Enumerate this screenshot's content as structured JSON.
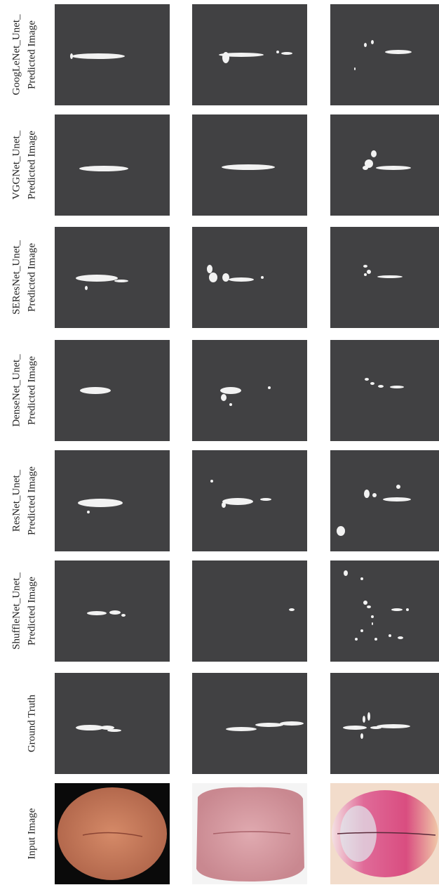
{
  "rows": [
    {
      "label": [
        "GoogLeNet_Unet_",
        "Predicted Image"
      ]
    },
    {
      "label": [
        "VGGNet_Unet_",
        "Predicted Image"
      ]
    },
    {
      "label": [
        "SEResNet_Unet_",
        "Predicted Image"
      ]
    },
    {
      "label": [
        "DenseNet_Unet_",
        "Predicted Image"
      ]
    },
    {
      "label": [
        "ResNet_Unet_",
        "Predicted Image"
      ]
    },
    {
      "label": [
        "ShuffleNet_Unet_",
        "Predicted Image"
      ]
    },
    {
      "label": [
        "Ground Truth"
      ]
    },
    {
      "label": [
        "Input Image"
      ]
    }
  ]
}
